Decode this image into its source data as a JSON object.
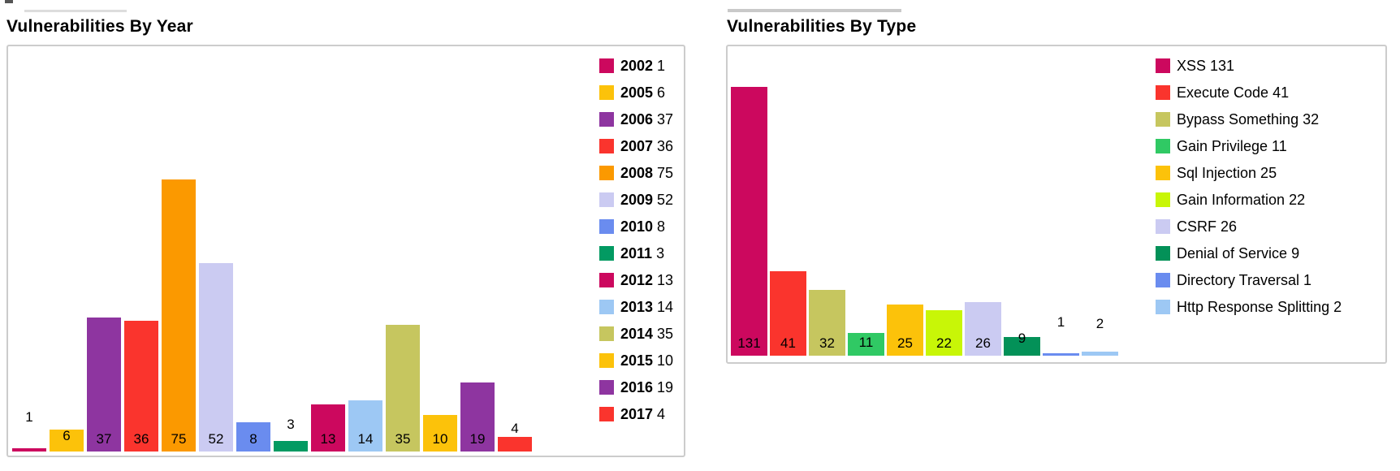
{
  "page_background": "#ffffff",
  "border_color": "#cccccc",
  "chart_data": [
    {
      "type": "bar",
      "title": "Vulnerabilities By Year",
      "categories": [
        "2002",
        "2005",
        "2006",
        "2007",
        "2008",
        "2009",
        "2010",
        "2011",
        "2012",
        "2013",
        "2014",
        "2015",
        "2016",
        "2017"
      ],
      "values": [
        1,
        6,
        37,
        36,
        75,
        52,
        8,
        3,
        13,
        14,
        35,
        10,
        19,
        4
      ],
      "colors": [
        "#CC085E",
        "#FCC20A",
        "#8E35A0",
        "#FA342D",
        "#FB9900",
        "#CBCBF2",
        "#6A8CEF",
        "#029A62",
        "#CC085E",
        "#9DC8F4",
        "#C6C65F",
        "#FCC20A",
        "#8E35A0",
        "#FA342D"
      ],
      "legend_entries": [
        "2002 1",
        "2005 6",
        "2006 37",
        "2007 36",
        "2008 75",
        "2009 52",
        "2010 8",
        "2011 3",
        "2012 13",
        "2013 14",
        "2014 35",
        "2015 10",
        "2016 19",
        "2017 4"
      ],
      "legend_position": "right",
      "legend_bold_names": true,
      "value_labels": "above bars",
      "xlabel": "",
      "ylabel": "",
      "axes": "none",
      "grid": false,
      "ylim": [
        0,
        77
      ]
    },
    {
      "type": "bar",
      "title": "Vulnerabilities By Type",
      "categories": [
        "XSS",
        "Execute Code",
        "Bypass Something",
        "Gain Privilege",
        "Sql Injection",
        "Gain Information",
        "CSRF",
        "Denial of Service",
        "Directory Traversal",
        "Http Response Splitting"
      ],
      "values": [
        131,
        41,
        32,
        11,
        25,
        22,
        26,
        9,
        1,
        2
      ],
      "colors": [
        "#CC085E",
        "#FA342D",
        "#C6C65F",
        "#30C964",
        "#FCC20A",
        "#C8F607",
        "#CBCBF2",
        "#039158",
        "#6A8CEF",
        "#9DC8F4"
      ],
      "legend_entries": [
        "XSS 131",
        "Execute Code 41",
        "Bypass Something 32",
        "Gain Privilege 11",
        "Sql Injection 25",
        "Gain Information 22",
        "CSRF 26",
        "Denial of Service 9",
        "Directory Traversal 1",
        "Http Response Splitting 2"
      ],
      "legend_position": "right",
      "legend_bold_names": false,
      "value_labels": "above bars",
      "xlabel": "",
      "ylabel": "",
      "axes": "none",
      "grid": false,
      "ylim": [
        0,
        134
      ]
    }
  ]
}
